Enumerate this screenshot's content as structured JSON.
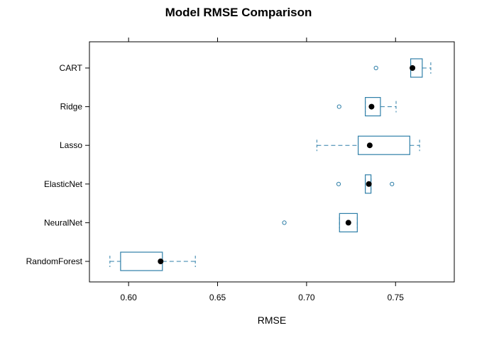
{
  "chart_data": {
    "type": "boxplot",
    "title": "Model RMSE Comparison",
    "xlabel": "RMSE",
    "ylabel": "",
    "xlim": [
      0.578,
      0.783
    ],
    "xticks": [
      "0.60",
      "0.65",
      "0.70",
      "0.75"
    ],
    "xtick_values": [
      0.6,
      0.65,
      0.7,
      0.75
    ],
    "box_color": "#2F7FA8",
    "median_color": "#000000",
    "categories": [
      "CART",
      "Ridge",
      "Lasso",
      "ElasticNet",
      "NeuralNet",
      "RandomForest"
    ],
    "boxes": [
      {
        "name": "CART",
        "whisker_low": 0.7585,
        "q1": 0.7585,
        "median": 0.7595,
        "q3": 0.765,
        "whisker_high": 0.7698,
        "outliers": [
          0.739
        ]
      },
      {
        "name": "Ridge",
        "whisker_low": 0.733,
        "q1": 0.733,
        "median": 0.7365,
        "q3": 0.7415,
        "whisker_high": 0.7503,
        "outliers": [
          0.7183
        ]
      },
      {
        "name": "Lasso",
        "whisker_low": 0.7058,
        "q1": 0.729,
        "median": 0.7355,
        "q3": 0.758,
        "whisker_high": 0.7635,
        "outliers": []
      },
      {
        "name": "ElasticNet",
        "whisker_low": 0.733,
        "q1": 0.733,
        "median": 0.735,
        "q3": 0.7362,
        "whisker_high": 0.7362,
        "outliers": [
          0.718,
          0.748
        ]
      },
      {
        "name": "NeuralNet",
        "whisker_low": 0.7185,
        "q1": 0.7185,
        "median": 0.7235,
        "q3": 0.7285,
        "whisker_high": 0.7285,
        "outliers": [
          0.6875
        ]
      },
      {
        "name": "RandomForest",
        "whisker_low": 0.5895,
        "q1": 0.5955,
        "median": 0.618,
        "q3": 0.619,
        "whisker_high": 0.6375,
        "outliers": []
      }
    ]
  }
}
